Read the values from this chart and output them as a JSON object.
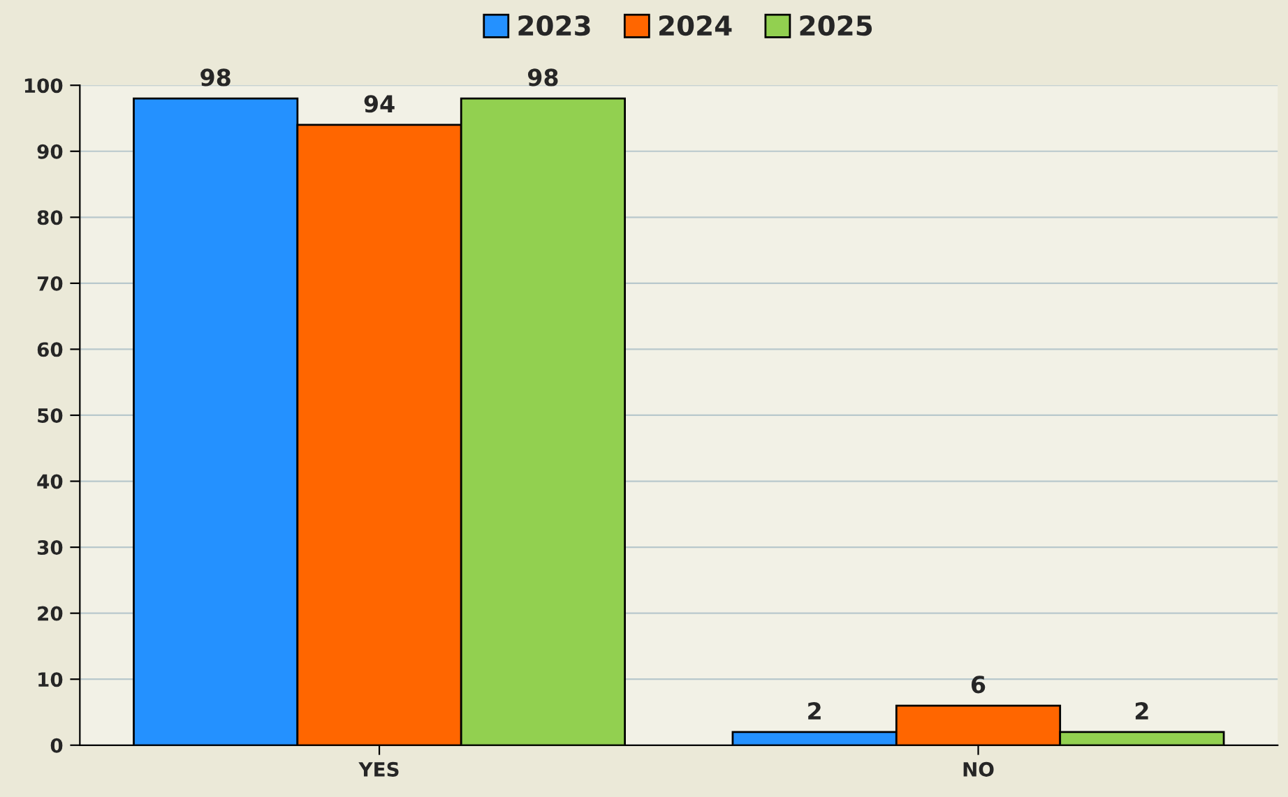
{
  "chart_data": {
    "type": "bar",
    "categories": [
      "YES",
      "NO"
    ],
    "series": [
      {
        "name": "2023",
        "color": "#2491ff",
        "values": [
          98,
          2
        ]
      },
      {
        "name": "2024",
        "color": "#ff6600",
        "values": [
          94,
          6
        ]
      },
      {
        "name": "2025",
        "color": "#92d050",
        "values": [
          98,
          2
        ]
      }
    ],
    "ylim": [
      0,
      100
    ],
    "yticks": [
      0,
      10,
      20,
      30,
      40,
      50,
      60,
      70,
      80,
      90,
      100
    ],
    "grid": "y",
    "legend": "top",
    "data_labels": true
  }
}
